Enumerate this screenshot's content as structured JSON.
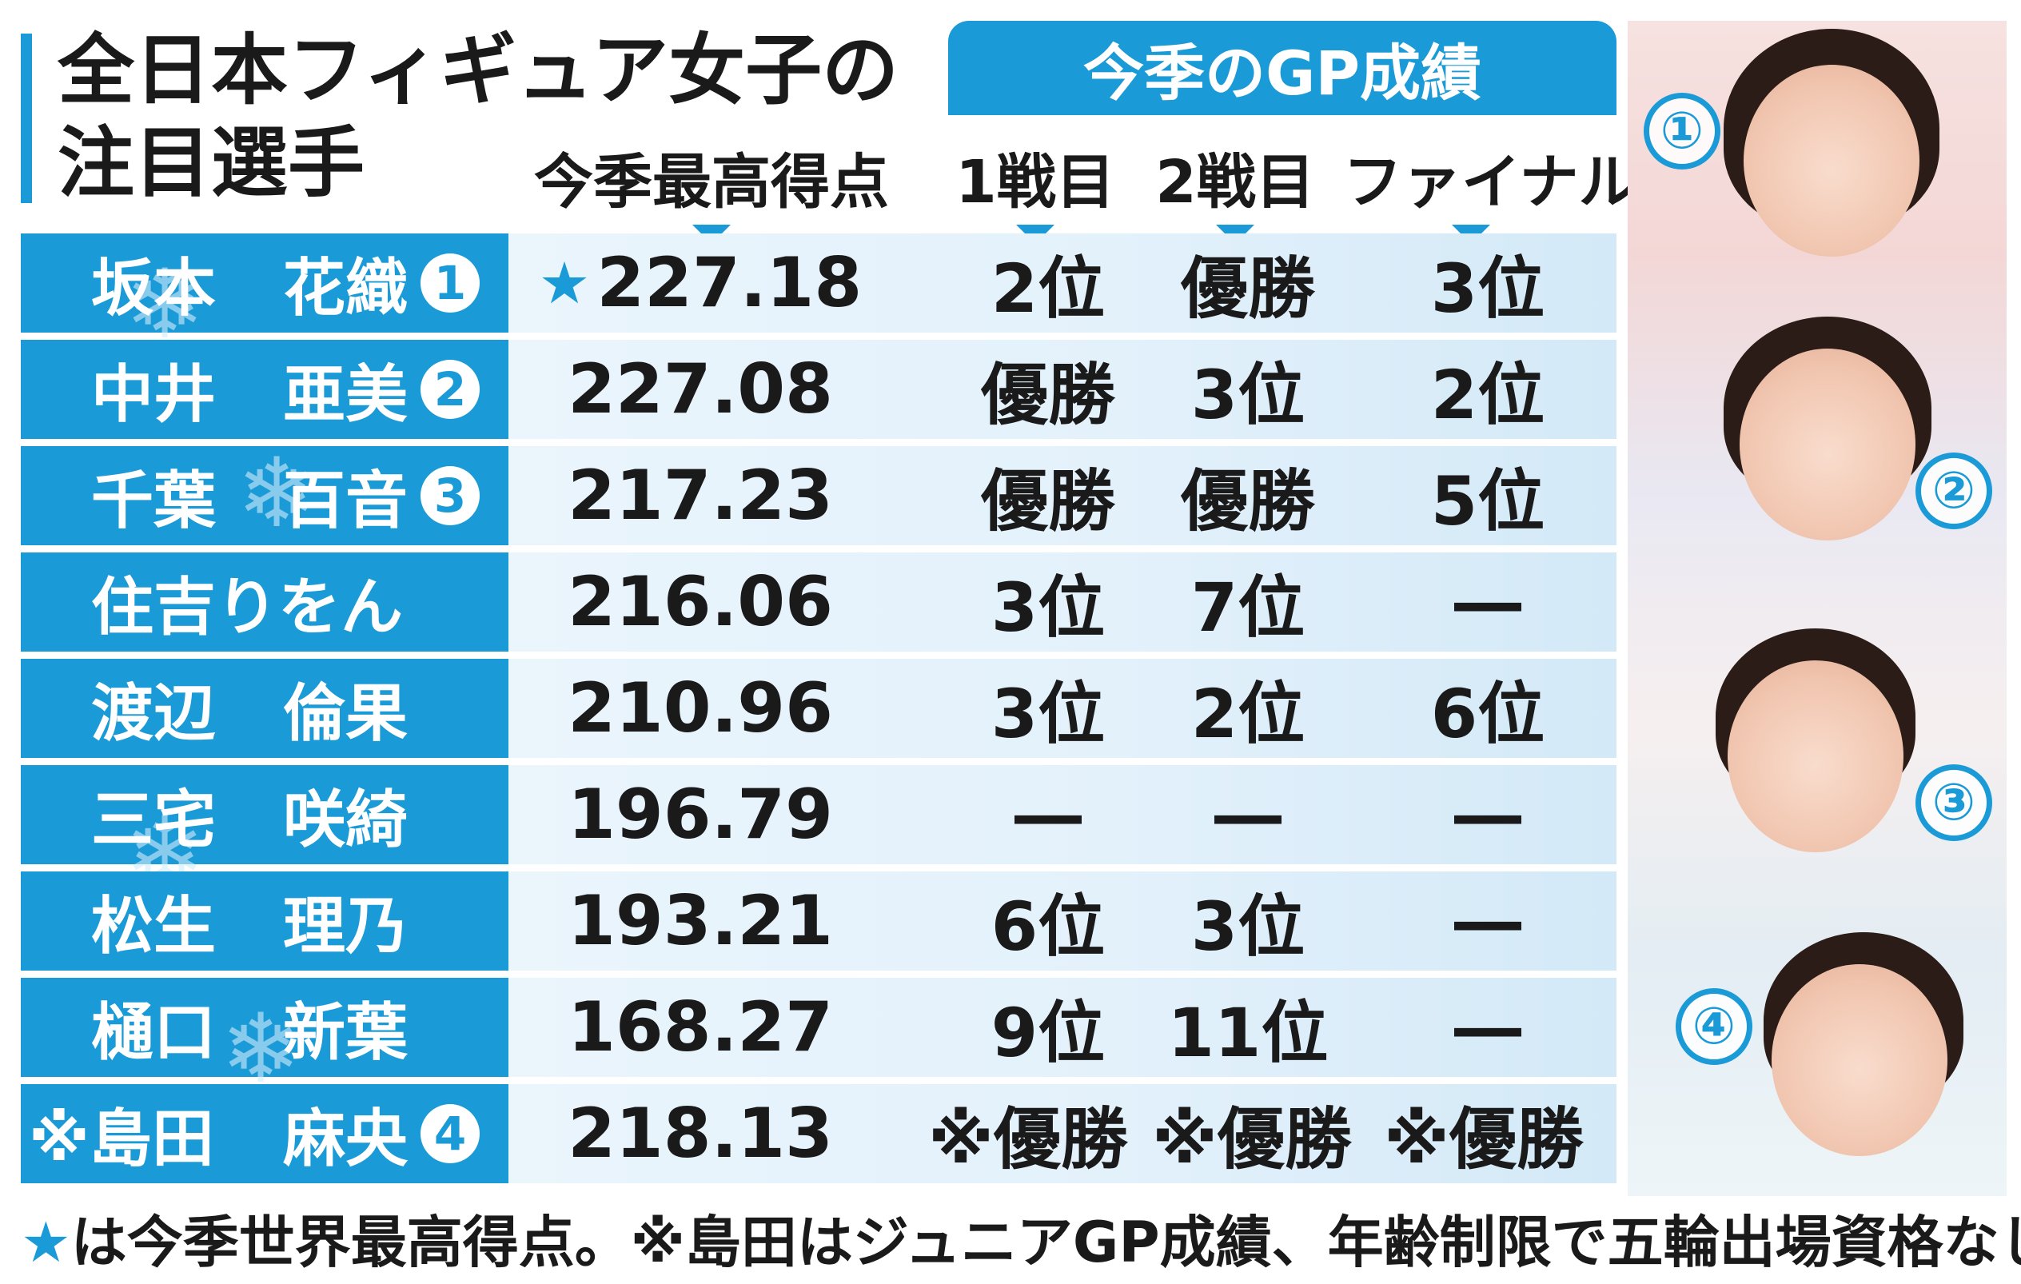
{
  "title": {
    "line1": "全日本フィギュア女子の",
    "line2": "注目選手"
  },
  "column_headers": {
    "best_score": "今季最高得点",
    "gp_group": "今季のGP成績",
    "gp1": "1戦目",
    "gp2": "2戦目",
    "final": "ファイナル"
  },
  "rows": [
    {
      "first": "坂本",
      "last": "花織",
      "badge": "1",
      "score": "227.18",
      "star": "★",
      "gp1": "2位",
      "gp2": "優勝",
      "final": "3位"
    },
    {
      "first": "中井",
      "last": "亜美",
      "badge": "2",
      "score": "227.08",
      "gp1": "優勝",
      "gp2": "3位",
      "final": "2位"
    },
    {
      "first": "千葉",
      "last": "百音",
      "badge": "3",
      "score": "217.23",
      "gp1": "優勝",
      "gp2": "優勝",
      "final": "5位"
    },
    {
      "full": "住吉りをん",
      "score": "216.06",
      "gp1": "3位",
      "gp2": "7位",
      "final": "―"
    },
    {
      "first": "渡辺",
      "last": "倫果",
      "score": "210.96",
      "gp1": "3位",
      "gp2": "2位",
      "final": "6位"
    },
    {
      "first": "三宅",
      "last": "咲綺",
      "score": "196.79",
      "gp1": "―",
      "gp2": "―",
      "final": "―"
    },
    {
      "first": "松生",
      "last": "理乃",
      "score": "193.21",
      "gp1": "6位",
      "gp2": "3位",
      "final": "―"
    },
    {
      "first": "樋口",
      "last": "新葉",
      "score": "168.27",
      "gp1": "9位",
      "gp2": "11位",
      "final": "―"
    },
    {
      "first": "※島田",
      "last": "麻央",
      "badge": "4",
      "score": "218.13",
      "gp1": "※優勝",
      "gp2": "※優勝",
      "final": "※優勝"
    }
  ],
  "photo_labels": [
    "①",
    "②",
    "③",
    "④"
  ],
  "footnote": {
    "star": "★",
    "text": "は今季世界最高得点。※島田はジュニアGP成績、年齢制限で五輪出場資格なし"
  },
  "colors": {
    "accent": "#1a9ad6",
    "row_bg": "#e3f1fb"
  }
}
